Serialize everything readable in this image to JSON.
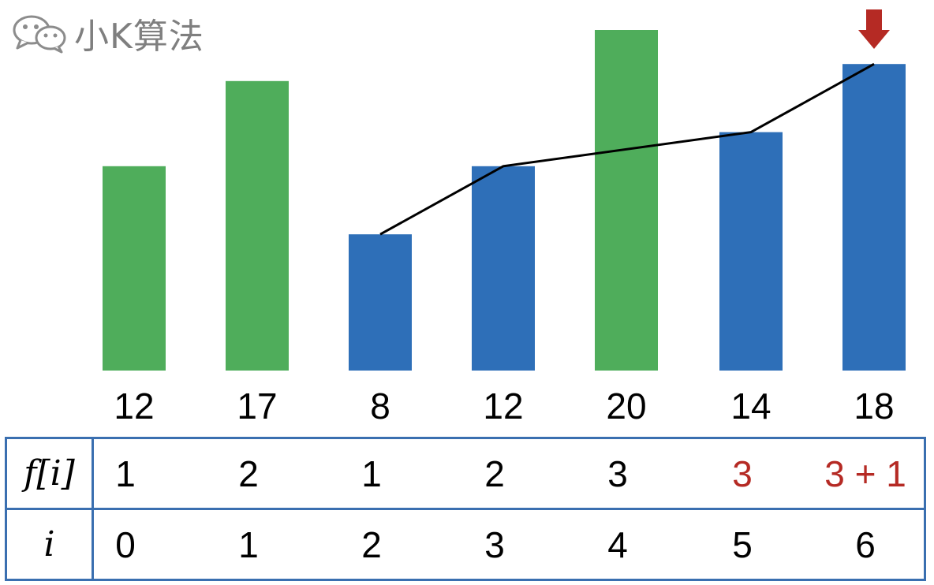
{
  "watermark": {
    "icon": "wechat-icon",
    "text": "小K算法"
  },
  "colors": {
    "green": "#4fad5b",
    "blue": "#2e6fb8",
    "red": "#b52a24",
    "line": "#000000",
    "border": "#3a6fb0"
  },
  "chart_data": {
    "type": "bar",
    "values": [
      12,
      17,
      8,
      12,
      20,
      14,
      18
    ],
    "labels": [
      "12",
      "17",
      "8",
      "12",
      "20",
      "14",
      "18"
    ],
    "bar_colors": [
      "green",
      "green",
      "blue",
      "blue",
      "green",
      "blue",
      "blue"
    ],
    "path_indices": [
      2,
      3,
      5,
      6
    ],
    "pointer_index": 6,
    "ylim": [
      0,
      20
    ]
  },
  "table": {
    "row_f": {
      "label": "f[i]",
      "values": [
        "1",
        "2",
        "1",
        "2",
        "3",
        "3",
        "3 + 1"
      ],
      "highlight": [
        5,
        6
      ]
    },
    "row_i": {
      "label": "i",
      "values": [
        "0",
        "1",
        "2",
        "3",
        "4",
        "5",
        "6"
      ]
    }
  }
}
